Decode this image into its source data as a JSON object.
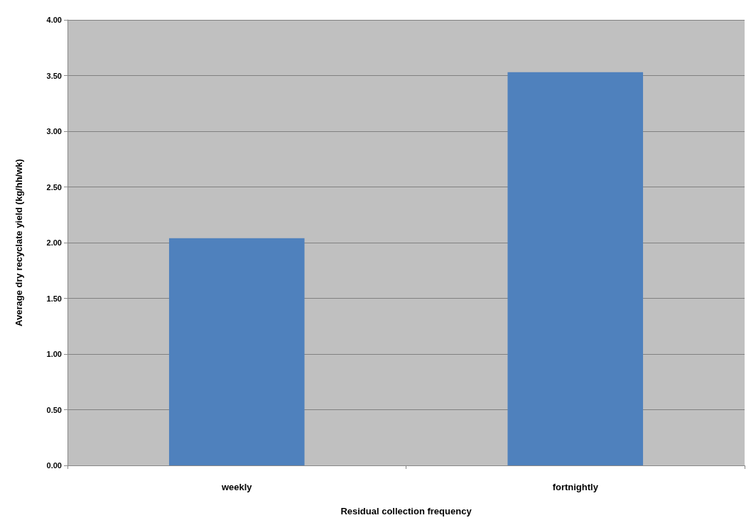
{
  "chart_data": {
    "type": "bar",
    "xlabel": "Residual collection frequency",
    "ylabel": "Average dry recyclate yield (kg/hh/wk)",
    "categories": [
      "weekly",
      "fortnightly"
    ],
    "series": [
      {
        "color": "#4f81bd",
        "values": [
          2.04,
          3.53
        ]
      }
    ],
    "ylim": [
      0,
      4
    ],
    "yticks": [
      {
        "value": 0,
        "label": "0.00"
      },
      {
        "value": 0.5,
        "label": "0.50"
      },
      {
        "value": 1,
        "label": "1.00"
      },
      {
        "value": 1.5,
        "label": "1.50"
      },
      {
        "value": 2,
        "label": "2.00"
      },
      {
        "value": 2.5,
        "label": "2.50"
      },
      {
        "value": 3,
        "label": "3.00"
      },
      {
        "value": 3.5,
        "label": "3.50"
      },
      {
        "value": 4,
        "label": "4.00"
      }
    ],
    "grid": "y",
    "legend": false
  }
}
